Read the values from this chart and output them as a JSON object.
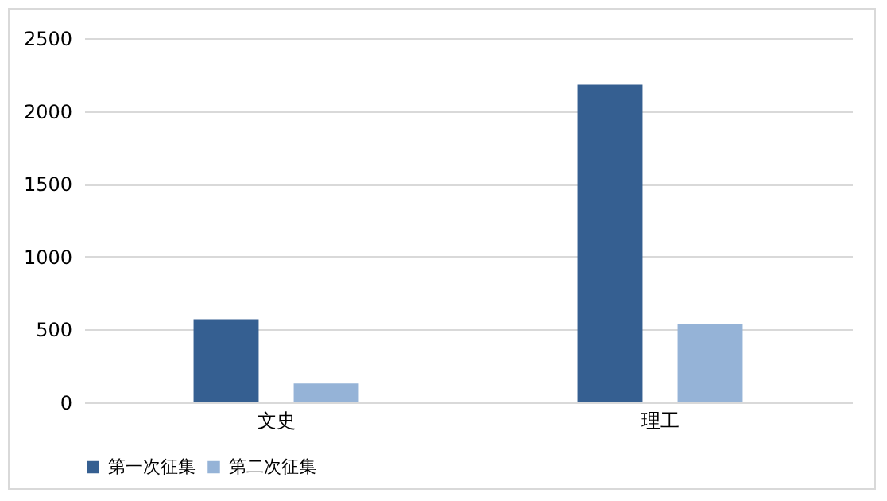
{
  "chart_data": {
    "type": "bar",
    "categories": [
      "文史",
      "理工"
    ],
    "series": [
      {
        "name": "第一次征集",
        "color": "#355f91",
        "values": [
          570,
          2180
        ]
      },
      {
        "name": "第二次征集",
        "color": "#95b3d7",
        "values": [
          130,
          540
        ]
      }
    ],
    "ylim": [
      0,
      2500
    ],
    "yticks": [
      0,
      500,
      1000,
      1500,
      2000,
      2500
    ],
    "grid": "y",
    "legend": "bottom"
  }
}
